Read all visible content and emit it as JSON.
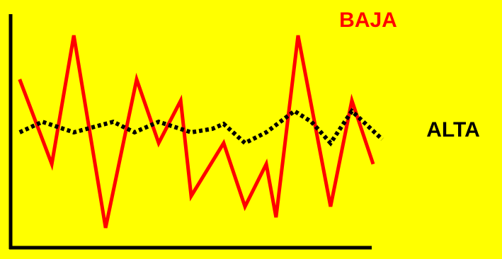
{
  "chart_data": {
    "type": "line",
    "xlim": [
      0,
      100
    ],
    "ylim": [
      0,
      100
    ],
    "series": [
      {
        "name": "BAJA",
        "color": "#ff0000",
        "dash": "solid",
        "x": [
          2.5,
          11.4,
          17.5,
          26.3,
          34.9,
          41,
          47.1,
          50,
          59,
          64.9,
          70.8,
          73.5,
          79.6,
          88.6,
          94.5,
          100.4
        ],
        "values": [
          72.1,
          35.8,
          90.9,
          8.5,
          72.1,
          44.8,
          63,
          22.1,
          44.8,
          17.6,
          35.8,
          13,
          90.9,
          17.6,
          63,
          35.8
        ]
      },
      {
        "name": "ALTA",
        "color": "#000000",
        "dash": "dotted",
        "x": [
          2.5,
          8.8,
          17.5,
          28.4,
          34.3,
          41,
          50,
          55.9,
          59,
          64.9,
          70.8,
          78.6,
          83.3,
          88.6,
          94.5,
          102.9
        ],
        "values": [
          49.4,
          53.9,
          49.4,
          53.9,
          49.4,
          53.9,
          49.4,
          50.9,
          53,
          44.8,
          49.4,
          58.5,
          53.9,
          44.8,
          58.5,
          46.4
        ]
      }
    ]
  }
}
